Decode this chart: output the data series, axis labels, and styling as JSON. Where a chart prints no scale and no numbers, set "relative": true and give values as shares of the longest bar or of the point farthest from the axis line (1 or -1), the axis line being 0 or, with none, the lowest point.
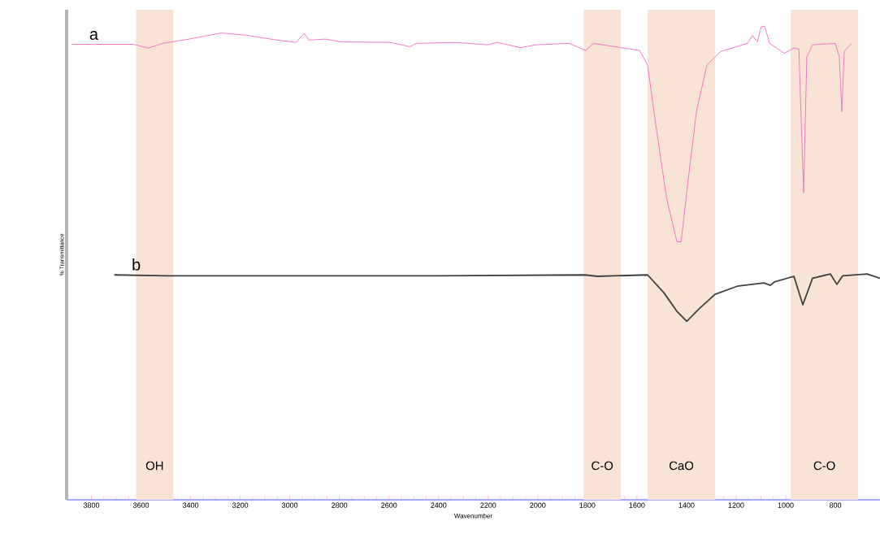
{
  "chart_data": {
    "type": "line",
    "relative": true,
    "xlabel": "Wavenumber",
    "ylabel": "% Transmittance",
    "xlim": [
      3900,
      620
    ],
    "xticks": [
      3800,
      3600,
      3400,
      3200,
      3000,
      2800,
      2600,
      2400,
      2200,
      2000,
      1800,
      1600,
      1400,
      1200,
      1000,
      800
    ],
    "bands": [
      {
        "axis": "x",
        "from": 3620,
        "to": 3470,
        "label": "OH",
        "color": "#f9e3d5"
      },
      {
        "axis": "x",
        "from": 1815,
        "to": 1665,
        "label": "C-O",
        "color": "#f9e3d5"
      },
      {
        "axis": "x",
        "from": 1557,
        "to": 1285,
        "label": "CaO",
        "color": "#f9e3d5"
      },
      {
        "axis": "x",
        "from": 980,
        "to": 708,
        "label": "C-O",
        "color": "#f9e3d5"
      }
    ],
    "series": [
      {
        "name": "a",
        "color": "#f06ec0",
        "x": [
          3879,
          3630,
          3571,
          3512,
          3407,
          3276,
          3171,
          3053,
          2975,
          2942,
          2922,
          2857,
          2791,
          2595,
          2516,
          2490,
          2333,
          2202,
          2162,
          2071,
          2005,
          1874,
          1806,
          1776,
          1589,
          1557,
          1524,
          1481,
          1439,
          1422,
          1393,
          1360,
          1318,
          1262,
          1154,
          1134,
          1115,
          1098,
          1085,
          1065,
          1006,
          967,
          947,
          928,
          915,
          892,
          800,
          784,
          774,
          764,
          735
        ],
        "values": [
          0.962,
          0.962,
          0.954,
          0.964,
          0.973,
          0.986,
          0.981,
          0.971,
          0.966,
          0.985,
          0.971,
          0.973,
          0.967,
          0.966,
          0.957,
          0.964,
          0.966,
          0.961,
          0.966,
          0.955,
          0.961,
          0.964,
          0.949,
          0.964,
          0.949,
          0.918,
          0.792,
          0.638,
          0.545,
          0.545,
          0.678,
          0.82,
          0.918,
          0.947,
          0.964,
          0.981,
          0.967,
          1.0,
          1.0,
          0.964,
          0.943,
          0.954,
          0.952,
          0.648,
          0.935,
          0.961,
          0.964,
          0.935,
          0.82,
          0.947,
          0.964
        ]
      },
      {
        "name": "b",
        "color": "#404040",
        "x": [
          3708,
          3495,
          2398,
          1809,
          1760,
          1557,
          1491,
          1439,
          1399,
          1350,
          1285,
          1196,
          1088,
          1062,
          1046,
          967,
          931,
          892,
          820,
          794,
          771,
          672,
          620
        ],
        "values": [
          0.475,
          0.473,
          0.473,
          0.475,
          0.472,
          0.475,
          0.437,
          0.398,
          0.377,
          0.403,
          0.434,
          0.451,
          0.458,
          0.453,
          0.46,
          0.472,
          0.412,
          0.468,
          0.477,
          0.455,
          0.473,
          0.477,
          0.468
        ]
      }
    ]
  }
}
